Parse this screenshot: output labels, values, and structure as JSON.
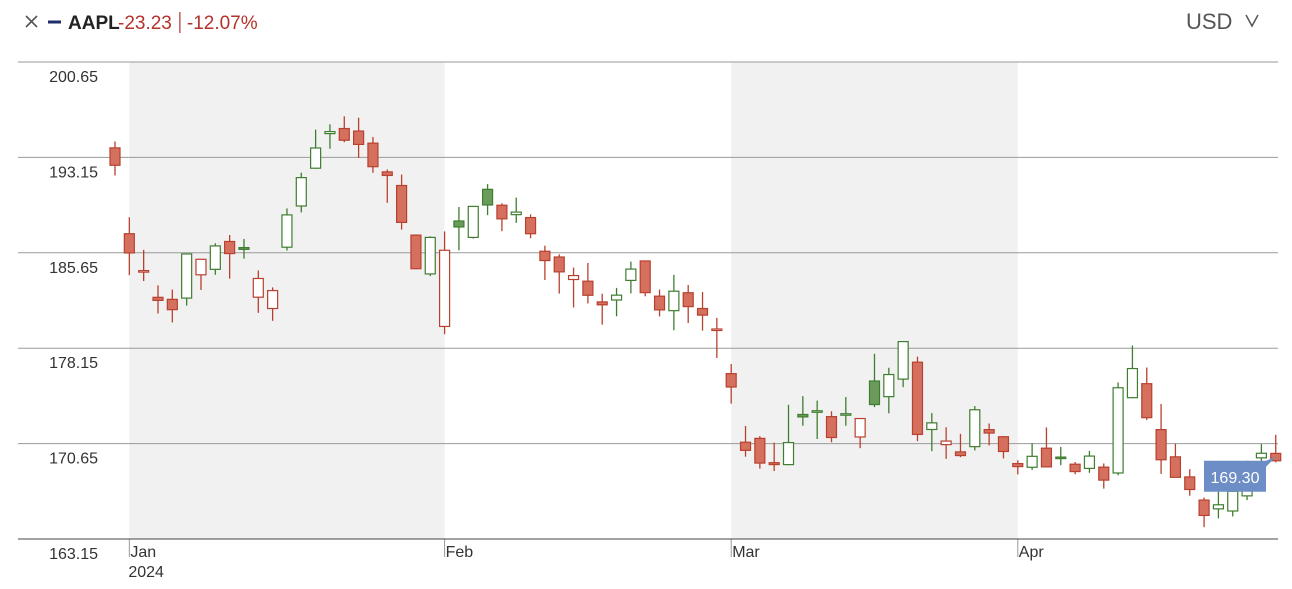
{
  "chart_data": {
    "type": "candlestick",
    "symbol": "AAPL",
    "change": "-23.23",
    "change_percent": "-12.07%",
    "currency": "USD",
    "year_label": "2024",
    "ylim": [
      163.15,
      200.65
    ],
    "yticks": [
      200.65,
      193.15,
      185.65,
      178.15,
      170.65,
      163.15
    ],
    "xticks": [
      {
        "value": 1,
        "label": "Jan"
      },
      {
        "value": 23,
        "label": "Feb"
      },
      {
        "value": 43,
        "label": "Mar"
      },
      {
        "value": 63,
        "label": "Apr"
      }
    ],
    "grid": true,
    "alternate_month_shading": true,
    "shading_color": "#f1f1f1",
    "line_colors": {
      "up": "#3f7d30",
      "down": "#b8402e"
    },
    "fill_colors": {
      "up": "#6a9b5b",
      "down": "#d5705f"
    },
    "last_price": {
      "value": 169.3,
      "label": "169.30",
      "color": "#6c8dc6"
    },
    "open": [
      193.9,
      187.15,
      184.22,
      182.15,
      181.99,
      182.09,
      183.92,
      184.35,
      186.54,
      186.06,
      182.16,
      181.27,
      186.09,
      189.33,
      192.3,
      195.02,
      195.42,
      195.22,
      194.27,
      192.01,
      190.94,
      187.04,
      183.99,
      179.86,
      188.15,
      186.86,
      190.64,
      189.39,
      188.65,
      188.42,
      185.77,
      185.32,
      183.55,
      183.42,
      181.79,
      181.94,
      183.48,
      185.01,
      182.24,
      181.1,
      182.51,
      181.27,
      179.55,
      176.15,
      170.76,
      171.06,
      169.15,
      169.0,
      172.94,
      173.15,
      172.77,
      172.91,
      171.17,
      175.57,
      174.34,
      175.72,
      177.05,
      171.76,
      170.57,
      170.0,
      170.41,
      171.75,
      171.19,
      169.08,
      168.79,
      170.29,
      169.59,
      169.03,
      168.7,
      168.8,
      168.34,
      174.26,
      175.36,
      171.75,
      169.61,
      168.03,
      166.21,
      165.52,
      165.35,
      166.54,
      169.53,
      169.88
    ],
    "high": [
      194.4,
      188.44,
      185.88,
      183.09,
      182.76,
      185.6,
      185.15,
      186.4,
      187.05,
      186.74,
      184.26,
      182.93,
      189.14,
      191.95,
      195.33,
      195.75,
      196.38,
      196.27,
      194.76,
      192.2,
      191.8,
      187.1,
      186.95,
      187.33,
      189.25,
      189.31,
      191.05,
      189.54,
      189.99,
      188.67,
      186.21,
      185.53,
      184.49,
      184.85,
      182.43,
      182.89,
      184.96,
      185.04,
      182.76,
      183.92,
      183.12,
      182.57,
      180.53,
      176.9,
      172.04,
      171.24,
      170.73,
      173.7,
      174.38,
      174.03,
      173.19,
      174.31,
      172.62,
      177.71,
      176.61,
      178.67,
      177.49,
      173.05,
      171.94,
      171.42,
      173.6,
      172.23,
      171.25,
      169.34,
      170.68,
      171.92,
      170.39,
      169.2,
      170.08,
      169.09,
      175.46,
      178.36,
      176.63,
      173.76,
      170.65,
      168.64,
      166.4,
      167.26,
      167.05,
      169.3,
      170.61,
      171.34
    ],
    "low": [
      191.73,
      183.89,
      183.43,
      180.88,
      180.17,
      181.5,
      182.73,
      183.92,
      183.62,
      185.19,
      180.93,
      180.3,
      185.83,
      188.82,
      192.26,
      193.83,
      194.34,
      193.11,
      191.94,
      189.58,
      187.47,
      184.35,
      183.82,
      179.25,
      185.84,
      186.77,
      188.61,
      187.35,
      188.0,
      186.79,
      183.51,
      182.44,
      181.35,
      181.67,
      180.0,
      180.66,
      182.46,
      182.23,
      180.65,
      179.56,
      180.13,
      179.53,
      177.38,
      173.79,
      169.62,
      168.68,
      168.49,
      168.94,
      172.05,
      171.01,
      170.76,
      172.05,
      170.29,
      173.52,
      173.03,
      175.09,
      170.84,
      170.06,
      169.45,
      169.58,
      170.11,
      170.51,
      169.48,
      168.23,
      168.58,
      168.82,
      168.95,
      168.24,
      168.35,
      167.11,
      168.16,
      174.21,
      172.5,
      168.27,
      168.0,
      166.55,
      164.08,
      164.77,
      164.92,
      166.21,
      168.15,
      169.18
    ],
    "close": [
      192.53,
      185.64,
      184.25,
      181.91,
      181.18,
      185.56,
      185.14,
      186.19,
      185.59,
      185.92,
      183.63,
      182.68,
      188.63,
      191.56,
      193.89,
      195.18,
      194.5,
      194.17,
      192.42,
      191.73,
      188.04,
      184.4,
      186.86,
      185.85,
      187.68,
      189.3,
      189.41,
      188.32,
      188.85,
      187.15,
      185.04,
      184.15,
      183.86,
      182.31,
      181.56,
      182.32,
      184.37,
      182.52,
      181.16,
      182.63,
      181.42,
      180.75,
      179.66,
      175.1,
      170.12,
      169.12,
      169.0,
      170.73,
      172.75,
      173.23,
      171.13,
      173.0,
      172.62,
      173.72,
      176.08,
      178.67,
      171.37,
      172.28,
      170.85,
      169.71,
      173.31,
      171.48,
      170.03,
      168.84,
      169.65,
      168.82,
      169.58,
      168.45,
      169.67,
      167.78,
      175.04,
      176.55,
      172.69,
      169.38,
      168.0,
      167.04,
      165.0,
      165.84,
      166.9,
      169.02,
      169.89,
      169.3
    ]
  }
}
